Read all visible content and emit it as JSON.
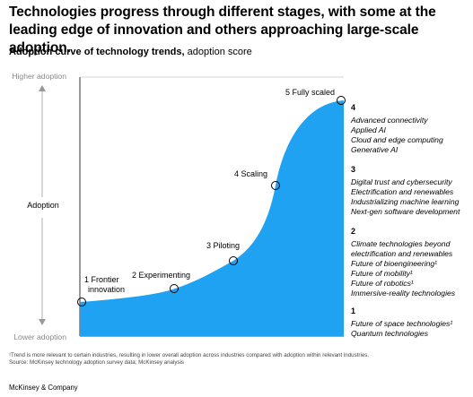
{
  "headline": "Technologies progress through different stages, with some at the leading edge of innovation and others approaching large-scale adoption.",
  "subtitle_bold": "Adoption curve of technology trends,",
  "subtitle_rest": " adoption score",
  "chart_data": {
    "type": "line",
    "title": "Adoption curve of technology trends",
    "ylabel": "Adoption",
    "y_axis_top_label": "Higher adoption",
    "y_axis_bottom_label": "Lower adoption",
    "stages": [
      {
        "label": "1 Frontier innovation"
      },
      {
        "label": "2 Experimenting"
      },
      {
        "label": "3 Piloting"
      },
      {
        "label": "4 Scaling"
      },
      {
        "label": "5 Fully scaled"
      }
    ],
    "groups": [
      {
        "number": "4",
        "items": [
          "Advanced connectivity",
          "Applied AI",
          "Cloud and edge computing",
          "Generative AI"
        ]
      },
      {
        "number": "3",
        "items": [
          "Digital trust and cybersecurity",
          "Electrification and renewables",
          "Industrializing machine learning",
          "Next-gen software development"
        ]
      },
      {
        "number": "2",
        "items": [
          "Climate technologies beyond",
          "electrification and renewables",
          "Future of bioengineering¹",
          "Future of mobility¹",
          "Future of robotics¹",
          "Immersive-reality technologies"
        ]
      },
      {
        "number": "1",
        "items": [
          "Future of space technologies¹",
          "Quantum technologies"
        ]
      }
    ],
    "fill_color": "#1fa2f2",
    "marker_stroke": "#000000",
    "grid": false
  },
  "footnote_line1": "¹Trend is more relevant to certain industries, resulting in lower overall adoption across industries compared with adoption within relevant industries.",
  "footnote_line2": "Source: McKinsey technology adoption survey data; McKinsey analysis",
  "brand": "McKinsey & Company"
}
